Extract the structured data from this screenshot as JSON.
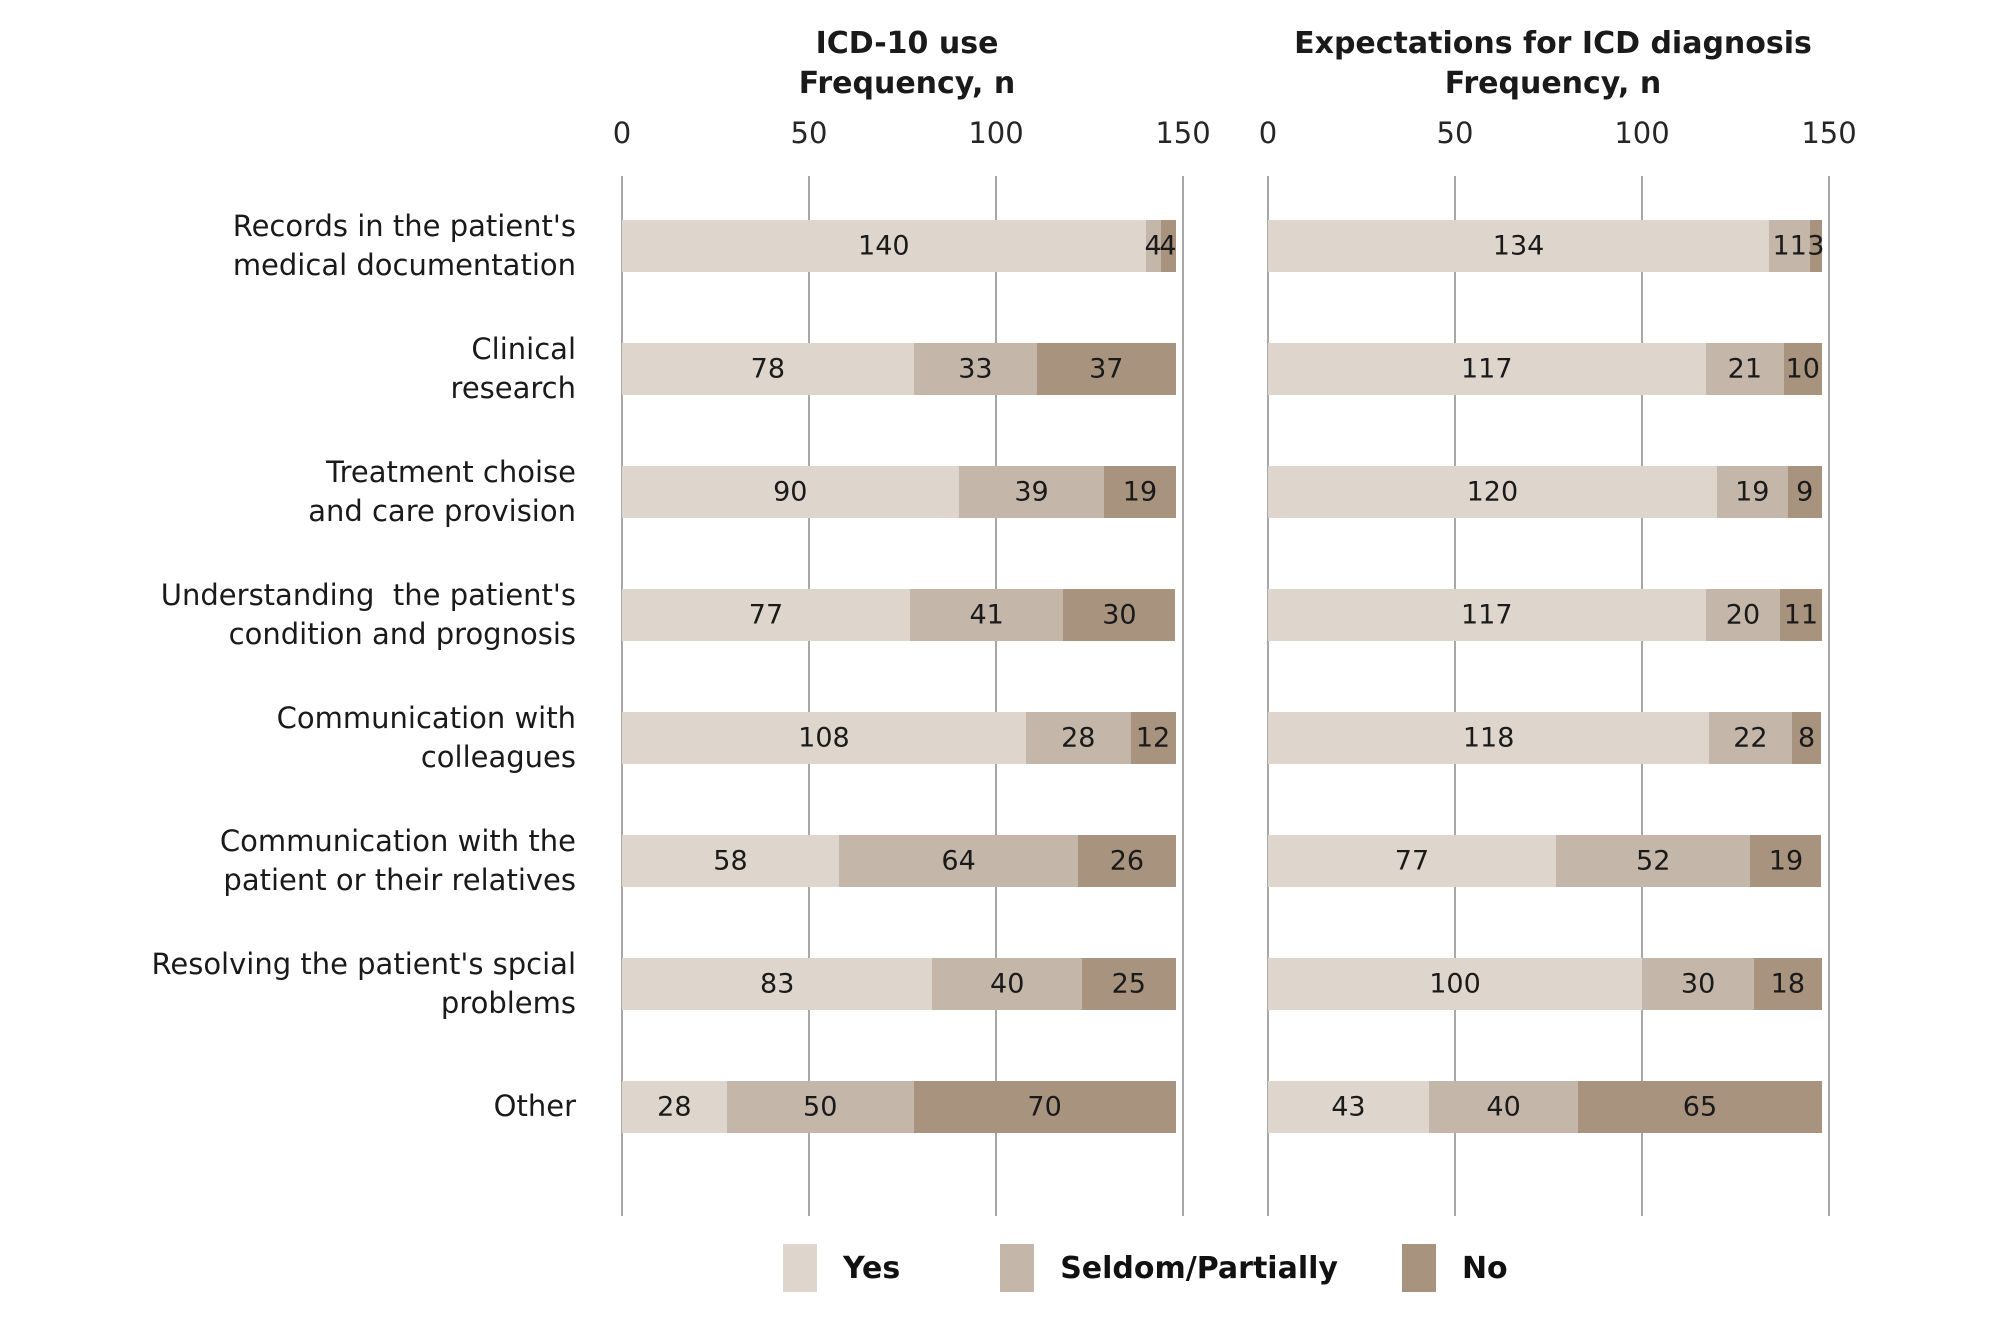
{
  "panels": [
    {
      "title_line1": "ICD-10 use",
      "title_line2": "Frequency, n",
      "ticks": [
        "0",
        "50",
        "100",
        "150"
      ]
    },
    {
      "title_line1": "Expectations for ICD diagnosis",
      "title_line2": "Frequency, n",
      "ticks": [
        "0",
        "50",
        "100",
        "150"
      ]
    }
  ],
  "categories": [
    {
      "line1": "Records in the patient's",
      "line2": "medical documentation"
    },
    {
      "line1": "Clinical",
      "line2": "research"
    },
    {
      "line1": "Treatment choise",
      "line2": "and care provision"
    },
    {
      "line1": "Understanding  the patient's",
      "line2": "condition and prognosis"
    },
    {
      "line1": "Communication with",
      "line2": "colleagues"
    },
    {
      "line1": "Communication with the",
      "line2": "patient or their relatives"
    },
    {
      "line1": "Resolving the patient's spcial",
      "line2": "problems"
    },
    {
      "line1": "Other"
    }
  ],
  "legend": [
    {
      "label": "Yes",
      "color": "#ded6cd"
    },
    {
      "label": "Seldom/Partially",
      "color": "#c4b6a9"
    },
    {
      "label": "No",
      "color": "#a8937f"
    }
  ],
  "style": {
    "gridline_color": "#a7a7a7",
    "background": "#ffffff"
  },
  "chart_data": [
    {
      "type": "bar",
      "orientation": "horizontal-stacked",
      "title": "ICD-10 use Frequency, n",
      "categories": [
        "Records in the patient's medical documentation",
        "Clinical research",
        "Treatment choise and care provision",
        "Understanding  the patient's condition and prognosis",
        "Communication with colleagues",
        "Communication with the patient or their relatives",
        "Resolving the patient's spcial problems",
        "Other"
      ],
      "series": [
        {
          "name": "Yes",
          "values": [
            140,
            78,
            90,
            77,
            108,
            58,
            83,
            28
          ]
        },
        {
          "name": "Seldom/Partially",
          "values": [
            4,
            33,
            39,
            41,
            28,
            64,
            40,
            50
          ]
        },
        {
          "name": "No",
          "values": [
            4,
            37,
            19,
            30,
            12,
            26,
            25,
            70
          ]
        }
      ],
      "xlabel": "Frequency, n",
      "xlim": [
        0,
        150
      ],
      "xticks": [
        0,
        50,
        100,
        150
      ],
      "grid": true,
      "legend_position": "bottom"
    },
    {
      "type": "bar",
      "orientation": "horizontal-stacked",
      "title": "Expectations for ICD diagnosis Frequency, n",
      "categories": [
        "Records in the patient's medical documentation",
        "Clinical research",
        "Treatment choise and care provision",
        "Understanding  the patient's condition and prognosis",
        "Communication with colleagues",
        "Communication with the patient or their relatives",
        "Resolving the patient's spcial problems",
        "Other"
      ],
      "series": [
        {
          "name": "Yes",
          "values": [
            134,
            117,
            120,
            117,
            118,
            77,
            100,
            43
          ]
        },
        {
          "name": "Seldom/Partially",
          "values": [
            11,
            21,
            19,
            20,
            22,
            52,
            30,
            40
          ]
        },
        {
          "name": "No",
          "values": [
            3,
            10,
            9,
            11,
            8,
            19,
            18,
            65
          ]
        }
      ],
      "xlabel": "Frequency, n",
      "xlim": [
        0,
        150
      ],
      "xticks": [
        0,
        50,
        100,
        150
      ],
      "grid": true,
      "legend_position": "bottom"
    }
  ]
}
